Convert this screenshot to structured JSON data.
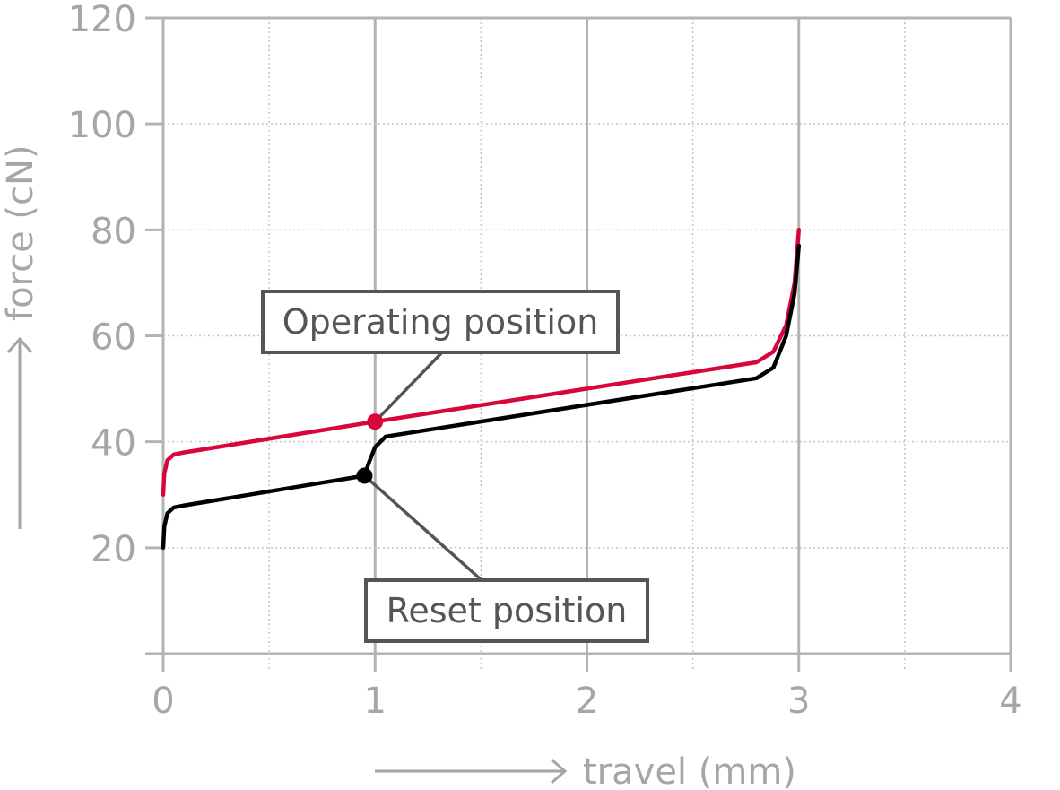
{
  "chart_data": {
    "type": "line",
    "xlabel": "travel (mm)",
    "ylabel": "force (cN)",
    "xlim": [
      0,
      4
    ],
    "ylim": [
      0,
      120
    ],
    "x_ticks": [
      "0",
      "1",
      "2",
      "3",
      "4"
    ],
    "y_ticks": [
      "20",
      "40",
      "60",
      "80",
      "100",
      "120"
    ],
    "grid": true,
    "series": [
      {
        "color": "#d7063b",
        "x": [
          0,
          0.005,
          0.02,
          0.05,
          0.1,
          1.0,
          2.8,
          2.88,
          2.94,
          2.98,
          3.0
        ],
        "y": [
          30,
          34,
          36.5,
          37.6,
          38,
          43.8,
          55,
          57,
          62,
          70,
          80
        ]
      },
      {
        "color": "#000000",
        "x": [
          0,
          0.005,
          0.02,
          0.05,
          0.1,
          0.95,
          0.97,
          1.0,
          1.05,
          2.8,
          2.88,
          2.94,
          2.98,
          3.0
        ],
        "y": [
          20,
          24,
          26.5,
          27.6,
          28,
          33.6,
          36,
          39,
          41,
          52,
          54,
          60,
          68,
          77
        ]
      }
    ],
    "annotations": [
      {
        "text": "Operating position",
        "x": 1.0,
        "y": 43.8,
        "color": "#d7063b"
      },
      {
        "text": "Reset position",
        "x": 0.95,
        "y": 33.6,
        "color": "#000000"
      }
    ]
  }
}
